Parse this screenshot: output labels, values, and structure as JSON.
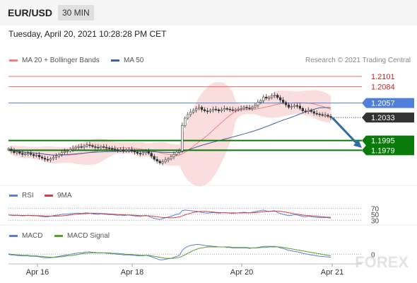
{
  "header": {
    "symbol": "EUR/USD",
    "timeframe": "30 MIN"
  },
  "timestamp": "Tuesday, April 20, 2021 10:28:28 PM CET",
  "legend": {
    "bollinger": "MA 20 + Bollinger Bands",
    "ma50": "MA 50",
    "rsi": "RSI",
    "rsi_ma": "9MA",
    "macd": "MACD",
    "macd_signal": "MACD Signal"
  },
  "copyright": "Research © 2021 Trading Central",
  "watermark": "FOREX",
  "colors": {
    "up": "#e8e8e8",
    "down": "#333333",
    "bollinger": "#f08080",
    "ma50": "#4060a8",
    "resistance": "#f07070",
    "pivot": "#4f7fd8",
    "support": "#0a7a0a",
    "price_tag": "#333333",
    "rsi": "#5b7fd6",
    "rsi_ma": "#d44040",
    "macd": "#5b7fd6",
    "macd_signal": "#5aa02c",
    "arrow": "#2e6da4"
  },
  "chart_data": {
    "type": "candlestick",
    "x_ticks": [
      "Apr 16",
      "Apr 18",
      "Apr 20",
      "Apr 21"
    ],
    "price_range": [
      1.1935,
      1.2115
    ],
    "current_price": "1.2033",
    "levels": [
      {
        "label": "1.2101",
        "value": 1.2101,
        "role": "resistance"
      },
      {
        "label": "1.2084",
        "value": 1.2084,
        "role": "resistance"
      },
      {
        "label": "1.2057",
        "value": 1.2057,
        "role": "pivot"
      },
      {
        "label": "1.1995",
        "value": 1.1995,
        "role": "support"
      },
      {
        "label": "1.1979",
        "value": 1.1979,
        "role": "support"
      }
    ],
    "closes": [
      1.1981,
      1.1978,
      1.1975,
      1.1976,
      1.1974,
      1.1972,
      1.1973,
      1.1974,
      1.1972,
      1.197,
      1.1971,
      1.1968,
      1.1966,
      1.1964,
      1.1963,
      1.1965,
      1.1967,
      1.1969,
      1.1972,
      1.1975,
      1.1977,
      1.1978,
      1.198,
      1.1982,
      1.1984,
      1.1985,
      1.1984,
      1.1986,
      1.1988,
      1.1987,
      1.1985,
      1.1984,
      1.1983,
      1.1985,
      1.1984,
      1.1983,
      1.1982,
      1.1981,
      1.198,
      1.1979,
      1.198,
      1.1978,
      1.1979,
      1.198,
      1.1978,
      1.1976,
      1.1974,
      1.1973,
      1.1975,
      1.1977,
      1.1974,
      1.1969,
      1.1964,
      1.1961,
      1.1958,
      1.196,
      1.1963,
      1.1965,
      1.1968,
      1.1972,
      1.1976,
      1.1978,
      1.202,
      1.2032,
      1.2038,
      1.2042,
      1.2045,
      1.2048,
      1.205,
      1.2046,
      1.2044,
      1.2043,
      1.2045,
      1.2047,
      1.2046,
      1.2044,
      1.2046,
      1.2048,
      1.2047,
      1.2046,
      1.2045,
      1.2046,
      1.2047,
      1.2048,
      1.205,
      1.2049,
      1.2048,
      1.205,
      1.2053,
      1.2058,
      1.2061,
      1.2067,
      1.2065,
      1.2066,
      1.2069,
      1.207,
      1.2066,
      1.2062,
      1.2058,
      1.2054,
      1.205,
      1.2051,
      1.2053,
      1.2052,
      1.2048,
      1.2044,
      1.2043,
      1.2045,
      1.2043,
      1.204,
      1.2039,
      1.2038,
      1.2037,
      1.2037,
      1.2035,
      1.2033
    ],
    "rsi": {
      "levels": [
        70,
        50,
        30
      ],
      "range": [
        20,
        80
      ],
      "values": [
        48,
        47,
        46,
        47,
        46,
        45,
        46,
        47,
        46,
        45,
        46,
        44,
        43,
        42,
        42,
        44,
        46,
        47,
        48,
        50,
        51,
        51,
        52,
        53,
        54,
        54,
        53,
        54,
        55,
        54,
        52,
        51,
        50,
        52,
        51,
        50,
        49,
        49,
        48,
        47,
        48,
        46,
        47,
        48,
        46,
        45,
        44,
        43,
        45,
        47,
        44,
        40,
        37,
        35,
        33,
        36,
        39,
        41,
        44,
        47,
        50,
        52,
        62,
        64,
        63,
        62,
        61,
        60,
        59,
        56,
        55,
        54,
        55,
        56,
        55,
        54,
        55,
        56,
        55,
        54,
        53,
        54,
        55,
        56,
        57,
        56,
        55,
        57,
        59,
        61,
        62,
        64,
        61,
        60,
        61,
        62,
        56,
        53,
        50,
        48,
        46,
        47,
        49,
        48,
        46,
        43,
        42,
        44,
        43,
        41,
        40,
        40,
        39,
        40,
        39,
        38
      ]
    },
    "macd": {
      "range": [
        -0.0015,
        0.0025
      ],
      "macd": [
        0.0,
        -0.0001,
        -0.0002,
        -0.0002,
        -0.0003,
        -0.0003,
        -0.0003,
        -0.0003,
        -0.0004,
        -0.0004,
        -0.0004,
        -0.0005,
        -0.0006,
        -0.0007,
        -0.0007,
        -0.0007,
        -0.0006,
        -0.0005,
        -0.0004,
        -0.0003,
        -0.0002,
        -0.0001,
        0.0,
        0.0001,
        0.0002,
        0.0003,
        0.0003,
        0.0004,
        0.0005,
        0.0005,
        0.0004,
        0.0004,
        0.0003,
        0.0003,
        0.0003,
        0.0002,
        0.0002,
        0.0001,
        0.0001,
        0.0,
        0.0,
        -0.0001,
        -0.0001,
        -0.0001,
        -0.0002,
        -0.0002,
        -0.0003,
        -0.0003,
        -0.0003,
        -0.0002,
        -0.0003,
        -0.0005,
        -0.0007,
        -0.0009,
        -0.0011,
        -0.0011,
        -0.001,
        -0.0009,
        -0.0008,
        -0.0006,
        -0.0004,
        -0.0002,
        0.0008,
        0.0013,
        0.0016,
        0.0018,
        0.0019,
        0.002,
        0.002,
        0.0019,
        0.0018,
        0.0017,
        0.0017,
        0.0016,
        0.0016,
        0.0015,
        0.0015,
        0.0015,
        0.0014,
        0.0014,
        0.0013,
        0.0013,
        0.0013,
        0.0013,
        0.0013,
        0.0013,
        0.0012,
        0.0013,
        0.0013,
        0.0014,
        0.0015,
        0.0016,
        0.0016,
        0.0016,
        0.0016,
        0.0016,
        0.0015,
        0.0013,
        0.0012,
        0.001,
        0.0008,
        0.0007,
        0.0006,
        0.0005,
        0.0004,
        0.0002,
        0.0001,
        0.0,
        -0.0001,
        -0.0002,
        -0.0003,
        -0.0004,
        -0.0004,
        -0.0005,
        -0.0005,
        -0.0006
      ],
      "signal": [
        0.0001,
        0.0,
        0.0,
        -0.0001,
        -0.0001,
        -0.0002,
        -0.0002,
        -0.0002,
        -0.0003,
        -0.0003,
        -0.0003,
        -0.0004,
        -0.0004,
        -0.0005,
        -0.0005,
        -0.0006,
        -0.0006,
        -0.0006,
        -0.0005,
        -0.0005,
        -0.0004,
        -0.0003,
        -0.0003,
        -0.0002,
        -0.0001,
        0.0,
        0.0001,
        0.0002,
        0.0002,
        0.0003,
        0.0003,
        0.0003,
        0.0003,
        0.0003,
        0.0003,
        0.0003,
        0.0003,
        0.0002,
        0.0002,
        0.0002,
        0.0001,
        0.0001,
        0.0,
        0.0,
        0.0,
        -0.0001,
        -0.0001,
        -0.0002,
        -0.0002,
        -0.0002,
        -0.0002,
        -0.0003,
        -0.0004,
        -0.0005,
        -0.0006,
        -0.0007,
        -0.0008,
        -0.0008,
        -0.0008,
        -0.0008,
        -0.0007,
        -0.0006,
        -0.0004,
        -0.0001,
        0.0002,
        0.0005,
        0.0008,
        0.001,
        0.0012,
        0.0013,
        0.0014,
        0.0015,
        0.0015,
        0.0015,
        0.0015,
        0.0015,
        0.0015,
        0.0015,
        0.0015,
        0.0015,
        0.0014,
        0.0014,
        0.0014,
        0.0014,
        0.0014,
        0.0014,
        0.0013,
        0.0013,
        0.0013,
        0.0013,
        0.0014,
        0.0014,
        0.0014,
        0.0015,
        0.0015,
        0.0015,
        0.0015,
        0.0015,
        0.0014,
        0.0013,
        0.0012,
        0.0011,
        0.001,
        0.0009,
        0.0008,
        0.0007,
        0.0006,
        0.0005,
        0.0004,
        0.0003,
        0.0002,
        0.0001,
        0.0,
        -0.0001,
        -0.0002,
        -0.0003
      ]
    }
  }
}
